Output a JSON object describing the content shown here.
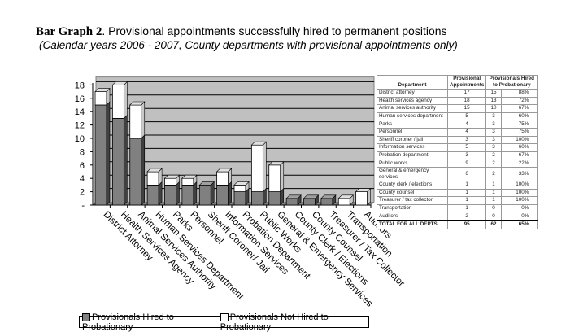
{
  "title_bold": "Bar Graph 2",
  "title_rest": ". Provisional appointments successfully hired to permanent positions",
  "subtitle": "(Calendar years 2006 - 2007, County departments with provisional appointments only)",
  "chart_data": {
    "type": "bar",
    "stacked": true,
    "categories": [
      "District Attorney",
      "Health Services Agency",
      "Animal Services Authority",
      "Human Services Department",
      "Parks",
      "Personnel",
      "Sheriff Coroner/ Jail",
      "Information Services",
      "Probation Department",
      "Public Works",
      "General & Emergency Services",
      "County Clerk / Elections",
      "County Counsel",
      "Treasurer / Tax Collector",
      "Transportation",
      "Auditors"
    ],
    "series": [
      {
        "name": "Provisionals Hired to Probationary",
        "color": "#808080",
        "values": [
          15,
          13,
          10,
          3,
          3,
          3,
          3,
          3,
          2,
          2,
          2,
          1,
          1,
          1,
          0,
          0
        ]
      },
      {
        "name": "Provisionals Not Hired to Probationary",
        "color": "#ffffff",
        "values": [
          2,
          5,
          5,
          2,
          1,
          1,
          0,
          2,
          1,
          7,
          4,
          0,
          0,
          0,
          1,
          2
        ]
      }
    ],
    "yticks": [
      "-",
      "2",
      "4",
      "6",
      "8",
      "10",
      "12",
      "14",
      "16",
      "18"
    ],
    "ylim": [
      0,
      18
    ],
    "grid": true,
    "legend": "bottom"
  },
  "table": {
    "headers": [
      "Department",
      "Provisional Appointments",
      "Provisionals Hired to Probationary"
    ],
    "rows": [
      [
        "District attorney",
        "17",
        "15",
        "88%"
      ],
      [
        "Health services agency",
        "18",
        "13",
        "72%"
      ],
      [
        "Animal services authority",
        "15",
        "10",
        "67%"
      ],
      [
        "Human services department",
        "5",
        "3",
        "60%"
      ],
      [
        "Parks",
        "4",
        "3",
        "75%"
      ],
      [
        "Personnel",
        "4",
        "3",
        "75%"
      ],
      [
        "Sheriff coroner / jail",
        "3",
        "3",
        "100%"
      ],
      [
        "Information services",
        "5",
        "3",
        "60%"
      ],
      [
        "Probation department",
        "3",
        "2",
        "67%"
      ],
      [
        "Public works",
        "9",
        "2",
        "22%"
      ],
      [
        "General & emergency services",
        "6",
        "2",
        "33%"
      ],
      [
        "County clerk / elections",
        "1",
        "1",
        "100%"
      ],
      [
        "County counsel",
        "1",
        "1",
        "100%"
      ],
      [
        "Treasurer / tax collector",
        "1",
        "1",
        "100%"
      ],
      [
        "Transportation",
        "1",
        "0",
        "0%"
      ],
      [
        "Auditors",
        "2",
        "0",
        "0%"
      ]
    ],
    "total": [
      "TOTAL FOR ALL DEPTS.",
      "95",
      "62",
      "65%"
    ]
  }
}
